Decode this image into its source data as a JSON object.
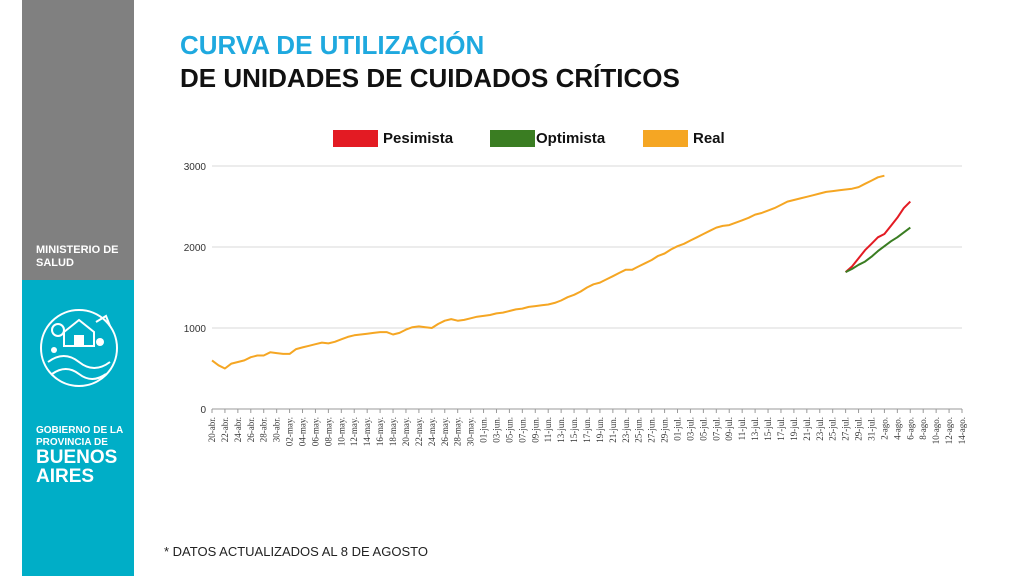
{
  "sidebar": {
    "ministry": "MINISTERIO DE SALUD",
    "government_small": "GOBIERNO DE LA PROVINCIA DE",
    "government_big": "BUENOS AIRES",
    "emblem_icon": "province-emblem-icon",
    "colors": {
      "top": "#808080",
      "bottom": "#00aec7"
    }
  },
  "header": {
    "title_line1": "CURVA DE UTILIZACIÓN",
    "title_line2": "DE UNIDADES DE CUIDADOS CRÍTICOS",
    "title_color": "#1fa9df"
  },
  "footnote": "* DATOS ACTUALIZADOS AL 8 DE AGOSTO",
  "chart_data": {
    "type": "line",
    "title": "",
    "xlabel": "",
    "ylabel": "",
    "ylim": [
      0,
      3000
    ],
    "yticks": [
      0,
      1000,
      2000,
      3000
    ],
    "grid": "horizontal",
    "legend_position": "top",
    "x_tick_labels": [
      "20-abr.",
      "22-abr.",
      "24-abr.",
      "26-abr.",
      "28-abr.",
      "30-abr.",
      "02-may.",
      "04-may.",
      "06-may.",
      "08-may.",
      "10-may.",
      "12-may.",
      "14-may.",
      "16-may.",
      "18-may.",
      "20-may.",
      "22-may.",
      "24-may.",
      "26-may.",
      "28-may.",
      "30-may.",
      "01-jun.",
      "03-jun.",
      "05-jun.",
      "07-jun.",
      "09-jun.",
      "11-jun.",
      "13-jun.",
      "15-jun.",
      "17-jun.",
      "19-jun.",
      "21-jun.",
      "23-jun.",
      "25-jun.",
      "27-jun.",
      "29-jun.",
      "01-jul.",
      "03-jul.",
      "05-jul.",
      "07-jul.",
      "09-jul.",
      "11-jul.",
      "13-jul.",
      "15-jul.",
      "17-jul.",
      "19-jul.",
      "21-jul.",
      "23-jul.",
      "25-jul.",
      "27-jul.",
      "29-jul.",
      "31-jul.",
      "2-ago.",
      "4-ago.",
      "6-ago.",
      "8-ago.",
      "10-ago.",
      "12-ago.",
      "14-ago."
    ],
    "series": [
      {
        "name": "Pesimista",
        "color": "#e31b23",
        "start_index": 98,
        "values": [
          1690,
          1760,
          1860,
          1960,
          2040,
          2120,
          2160,
          2260,
          2360,
          2480,
          2560
        ]
      },
      {
        "name": "Optimista",
        "color": "#3a7d22",
        "start_index": 98,
        "values": [
          1690,
          1730,
          1780,
          1820,
          1880,
          1950,
          2010,
          2070,
          2120,
          2180,
          2240
        ]
      },
      {
        "name": "Real",
        "color": "#f5a623",
        "start_index": 0,
        "values": [
          600,
          540,
          500,
          560,
          580,
          600,
          640,
          660,
          660,
          700,
          690,
          680,
          680,
          740,
          760,
          780,
          800,
          820,
          810,
          830,
          860,
          890,
          910,
          920,
          930,
          940,
          950,
          950,
          920,
          940,
          980,
          1010,
          1020,
          1010,
          1000,
          1050,
          1090,
          1110,
          1090,
          1100,
          1120,
          1140,
          1150,
          1160,
          1180,
          1190,
          1210,
          1230,
          1240,
          1260,
          1270,
          1280,
          1290,
          1310,
          1340,
          1380,
          1410,
          1450,
          1500,
          1540,
          1560,
          1600,
          1640,
          1680,
          1720,
          1720,
          1760,
          1800,
          1840,
          1890,
          1920,
          1970,
          2010,
          2040,
          2080,
          2120,
          2160,
          2200,
          2240,
          2260,
          2270,
          2300,
          2330,
          2360,
          2400,
          2420,
          2450,
          2480,
          2520,
          2560,
          2580,
          2600,
          2620,
          2640,
          2660,
          2680,
          2690,
          2700,
          2710,
          2720,
          2740,
          2780,
          2820,
          2860,
          2880
        ]
      }
    ]
  }
}
